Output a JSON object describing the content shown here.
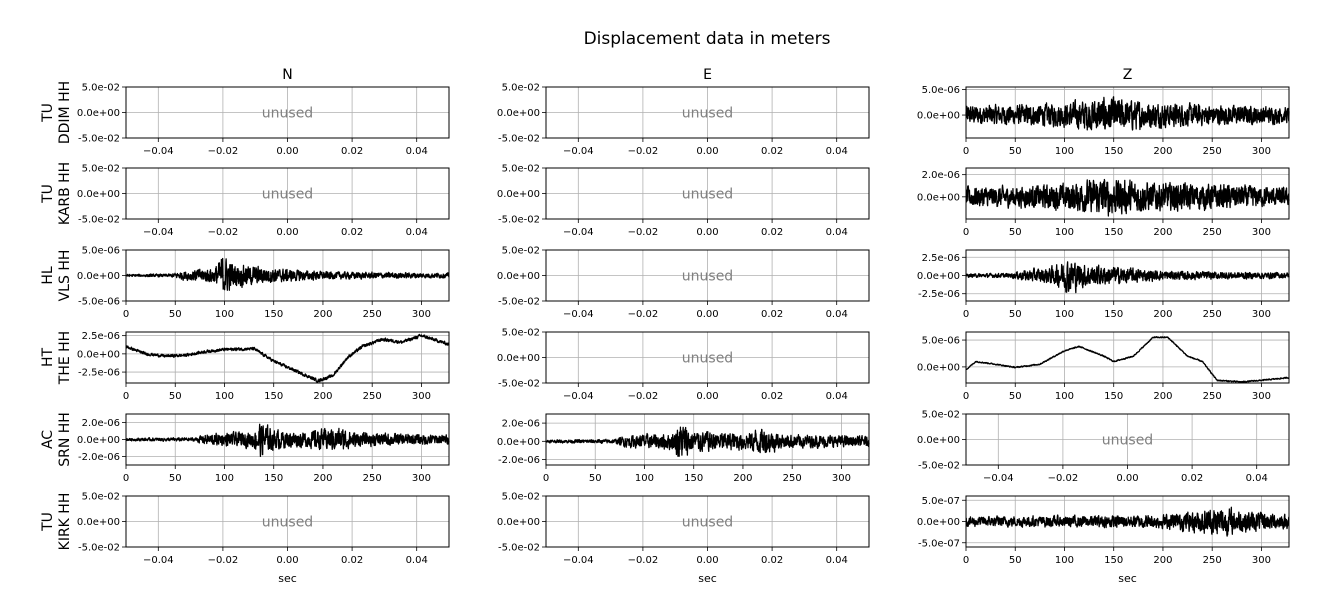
{
  "title": "Displacement data in meters",
  "columns": [
    "N",
    "E",
    "Z"
  ],
  "xlabel": "sec",
  "unused_label": "unused",
  "colors": {
    "trace": "#000000",
    "grid": "#b0b0b0",
    "unused_text": "#808080"
  },
  "rows": [
    {
      "net": "TU",
      "label": "DDIM HH"
    },
    {
      "net": "TU",
      "label": "KARB HH"
    },
    {
      "net": "HL",
      "label": "VLS HH"
    },
    {
      "net": "HT",
      "label": "THE HH"
    },
    {
      "net": "AC",
      "label": "SRN HH"
    },
    {
      "net": "TU",
      "label": "KIRK HH"
    }
  ],
  "unused_axes": {
    "xlim": [
      -0.05,
      0.05
    ],
    "xticks": [
      -0.04,
      -0.02,
      0.0,
      0.02,
      0.04
    ],
    "xtick_labels": [
      "−0.04",
      "−0.02",
      "0.00",
      "0.02",
      "0.04"
    ],
    "ylim": [
      -0.05,
      0.05
    ],
    "yticks": [
      -0.05,
      0.0,
      0.05
    ],
    "ytick_labels": [
      "-5.0e-02",
      "0.0e+00",
      "5.0e-02"
    ]
  },
  "time_axes": {
    "xlim": [
      0,
      328
    ],
    "xticks": [
      0,
      50,
      100,
      150,
      200,
      250,
      300
    ],
    "xtick_labels": [
      "0",
      "50",
      "100",
      "150",
      "200",
      "250",
      "300"
    ]
  },
  "chart_data": [
    {
      "type": "line",
      "row": 0,
      "col": 0,
      "used": false
    },
    {
      "type": "line",
      "row": 0,
      "col": 1,
      "used": false
    },
    {
      "type": "line",
      "row": 0,
      "col": 2,
      "used": true,
      "ylim": [
        -4.5e-06,
        5.5e-06
      ],
      "yticks": [
        0,
        5e-06
      ],
      "ytick_labels": [
        "0.0e+00",
        "5.0e-06"
      ],
      "envelope": [
        [
          0,
          2.5e-06
        ],
        [
          50,
          2.5e-06
        ],
        [
          100,
          3e-06
        ],
        [
          140,
          4.5e-06
        ],
        [
          200,
          3e-06
        ],
        [
          260,
          2.5e-06
        ],
        [
          328,
          2e-06
        ]
      ],
      "trend": [
        [
          0,
          0
        ],
        [
          328,
          0
        ]
      ]
    },
    {
      "type": "line",
      "row": 1,
      "col": 0,
      "used": false
    },
    {
      "type": "line",
      "row": 1,
      "col": 1,
      "used": false
    },
    {
      "type": "line",
      "row": 1,
      "col": 2,
      "used": true,
      "ylim": [
        -2e-06,
        2.6e-06
      ],
      "yticks": [
        0,
        2e-06
      ],
      "ytick_labels": [
        "0.0e+00",
        "2.0e-06"
      ],
      "envelope": [
        [
          0,
          1.2e-06
        ],
        [
          50,
          1.2e-06
        ],
        [
          100,
          1.5e-06
        ],
        [
          140,
          2.2e-06
        ],
        [
          200,
          1.6e-06
        ],
        [
          250,
          1.5e-06
        ],
        [
          328,
          1e-06
        ]
      ],
      "trend": [
        [
          0,
          0
        ],
        [
          328,
          0
        ]
      ]
    },
    {
      "type": "line",
      "row": 2,
      "col": 0,
      "used": true,
      "ylim": [
        -5e-06,
        5e-06
      ],
      "yticks": [
        -5e-06,
        0,
        5e-06
      ],
      "ytick_labels": [
        "-5.0e-06",
        "0.0e+00",
        "5.0e-06"
      ],
      "envelope": [
        [
          0,
          3e-07
        ],
        [
          45,
          4e-07
        ],
        [
          60,
          1.2e-06
        ],
        [
          90,
          2e-06
        ],
        [
          98,
          5e-06
        ],
        [
          110,
          3e-06
        ],
        [
          150,
          1.8e-06
        ],
        [
          200,
          1e-06
        ],
        [
          250,
          8e-07
        ],
        [
          328,
          6e-07
        ]
      ],
      "trend": [
        [
          0,
          0
        ],
        [
          328,
          0
        ]
      ]
    },
    {
      "type": "line",
      "row": 2,
      "col": 1,
      "used": false
    },
    {
      "type": "line",
      "row": 2,
      "col": 2,
      "used": true,
      "ylim": [
        -3.5e-06,
        3.5e-06
      ],
      "yticks": [
        -2.5e-06,
        0,
        2.5e-06
      ],
      "ytick_labels": [
        "-2.5e-06",
        "0.0e+00",
        "2.5e-06"
      ],
      "envelope": [
        [
          0,
          3e-07
        ],
        [
          45,
          4e-07
        ],
        [
          60,
          1e-06
        ],
        [
          90,
          1.6e-06
        ],
        [
          105,
          3.2e-06
        ],
        [
          120,
          2e-06
        ],
        [
          160,
          1.4e-06
        ],
        [
          200,
          8e-07
        ],
        [
          328,
          5e-07
        ]
      ],
      "trend": [
        [
          0,
          0
        ],
        [
          328,
          0
        ]
      ]
    },
    {
      "type": "line",
      "row": 3,
      "col": 0,
      "used": true,
      "ylim": [
        -4e-06,
        3e-06
      ],
      "yticks": [
        -2.5e-06,
        0,
        2.5e-06
      ],
      "ytick_labels": [
        "-2.5e-06",
        "0.0e+00",
        "2.5e-06"
      ],
      "envelope": [
        [
          0,
          2.5e-07
        ],
        [
          328,
          3e-07
        ]
      ],
      "trend": [
        [
          0,
          1e-06
        ],
        [
          20,
          0
        ],
        [
          40,
          -3e-07
        ],
        [
          60,
          -2e-07
        ],
        [
          80,
          3e-07
        ],
        [
          100,
          6e-07
        ],
        [
          130,
          7e-07
        ],
        [
          150,
          -1e-06
        ],
        [
          175,
          -2.5e-06
        ],
        [
          195,
          -3.7e-06
        ],
        [
          210,
          -3e-06
        ],
        [
          225,
          -5e-07
        ],
        [
          240,
          1e-06
        ],
        [
          260,
          2e-06
        ],
        [
          280,
          1.6e-06
        ],
        [
          300,
          2.5e-06
        ],
        [
          328,
          1.3e-06
        ]
      ]
    },
    {
      "type": "line",
      "row": 3,
      "col": 1,
      "used": false
    },
    {
      "type": "line",
      "row": 3,
      "col": 2,
      "used": true,
      "ylim": [
        -3e-06,
        6.5e-06
      ],
      "yticks": [
        0,
        5e-06
      ],
      "ytick_labels": [
        "0.0e+00",
        "5.0e-06"
      ],
      "envelope": [
        [
          0,
          1.5e-07
        ],
        [
          328,
          1.5e-07
        ]
      ],
      "trend": [
        [
          0,
          -5e-07
        ],
        [
          10,
          1e-06
        ],
        [
          30,
          5e-07
        ],
        [
          50,
          -1e-07
        ],
        [
          75,
          5e-07
        ],
        [
          100,
          3e-06
        ],
        [
          115,
          3.8e-06
        ],
        [
          140,
          2e-06
        ],
        [
          150,
          1e-06
        ],
        [
          170,
          2e-06
        ],
        [
          190,
          5.5e-06
        ],
        [
          205,
          5.5e-06
        ],
        [
          225,
          2e-06
        ],
        [
          240,
          1e-06
        ],
        [
          255,
          -2.5e-06
        ],
        [
          280,
          -2.8e-06
        ],
        [
          300,
          -2.5e-06
        ],
        [
          328,
          -2e-06
        ]
      ]
    },
    {
      "type": "line",
      "row": 4,
      "col": 0,
      "used": true,
      "ylim": [
        -3e-06,
        3e-06
      ],
      "yticks": [
        -2e-06,
        0,
        2e-06
      ],
      "ytick_labels": [
        "-2.0e-06",
        "0.0e+00",
        "2.0e-06"
      ],
      "envelope": [
        [
          0,
          2e-07
        ],
        [
          70,
          3e-07
        ],
        [
          80,
          8e-07
        ],
        [
          130,
          1.2e-06
        ],
        [
          135,
          2.8e-06
        ],
        [
          150,
          1.5e-06
        ],
        [
          180,
          1.2e-06
        ],
        [
          215,
          1.8e-06
        ],
        [
          240,
          1e-06
        ],
        [
          328,
          7e-07
        ]
      ],
      "trend": [
        [
          0,
          0
        ],
        [
          328,
          0
        ]
      ]
    },
    {
      "type": "line",
      "row": 4,
      "col": 1,
      "used": true,
      "ylim": [
        -2.6e-06,
        3e-06
      ],
      "yticks": [
        -2e-06,
        0,
        2e-06
      ],
      "ytick_labels": [
        "-2.0e-06",
        "0.0e+00",
        "2.0e-06"
      ],
      "envelope": [
        [
          0,
          2e-07
        ],
        [
          70,
          3e-07
        ],
        [
          80,
          8e-07
        ],
        [
          130,
          1.2e-06
        ],
        [
          135,
          2.8e-06
        ],
        [
          150,
          1.5e-06
        ],
        [
          200,
          1.2e-06
        ],
        [
          220,
          2e-06
        ],
        [
          240,
          1e-06
        ],
        [
          328,
          7e-07
        ]
      ],
      "trend": [
        [
          0,
          0
        ],
        [
          328,
          0
        ]
      ]
    },
    {
      "type": "line",
      "row": 4,
      "col": 2,
      "used": false
    },
    {
      "type": "line",
      "row": 5,
      "col": 0,
      "used": false
    },
    {
      "type": "line",
      "row": 5,
      "col": 1,
      "used": false
    },
    {
      "type": "line",
      "row": 5,
      "col": 2,
      "used": true,
      "ylim": [
        -6e-07,
        6e-07
      ],
      "yticks": [
        -5e-07,
        0,
        5e-07
      ],
      "ytick_labels": [
        "-5.0e-07",
        "0.0e+00",
        "5.0e-07"
      ],
      "envelope": [
        [
          0,
          1.5e-07
        ],
        [
          100,
          1.7e-07
        ],
        [
          200,
          2e-07
        ],
        [
          240,
          3.5e-07
        ],
        [
          260,
          4.5e-07
        ],
        [
          290,
          3e-07
        ],
        [
          328,
          2e-07
        ]
      ],
      "trend": [
        [
          0,
          0
        ],
        [
          328,
          0
        ]
      ]
    }
  ]
}
